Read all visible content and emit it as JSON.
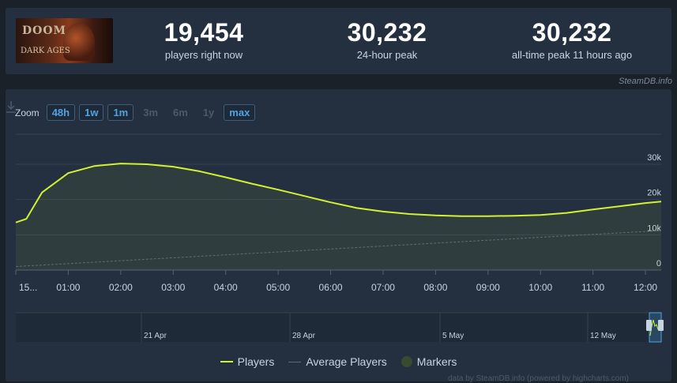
{
  "game": {
    "logo_text": "DOOM",
    "logo_sub": "DARK AGES"
  },
  "stats": [
    {
      "value": "19,454",
      "label": "players right now"
    },
    {
      "value": "30,232",
      "label": "24-hour peak"
    },
    {
      "value": "30,232",
      "label": "all-time peak 11 hours ago"
    }
  ],
  "credit": "SteamDB.info",
  "zoom": {
    "label": "Zoom",
    "options": [
      {
        "label": "48h",
        "active": true
      },
      {
        "label": "1w",
        "active": true
      },
      {
        "label": "1m",
        "active": true
      },
      {
        "label": "3m",
        "active": false
      },
      {
        "label": "6m",
        "active": false
      },
      {
        "label": "1y",
        "active": false
      },
      {
        "label": "max",
        "active": true
      }
    ]
  },
  "chart_data": {
    "type": "line",
    "x_ticks": [
      "15...",
      "01:00",
      "02:00",
      "03:00",
      "04:00",
      "05:00",
      "06:00",
      "07:00",
      "08:00",
      "09:00",
      "10:00",
      "11:00",
      "12:00"
    ],
    "y_ticks": [
      "0",
      "10k",
      "20k",
      "30k"
    ],
    "ylim": [
      0,
      30000
    ],
    "series": [
      {
        "name": "Players",
        "color": "#d1f232",
        "x": [
          0,
          0.2,
          0.5,
          1,
          1.5,
          2,
          2.5,
          3,
          3.5,
          4,
          4.5,
          5,
          5.5,
          6,
          6.5,
          7,
          7.5,
          8,
          8.5,
          9,
          9.5,
          10,
          10.5,
          11,
          11.5,
          12,
          12.3
        ],
        "values": [
          13500,
          14500,
          22000,
          27500,
          29500,
          30200,
          30000,
          29300,
          28000,
          26300,
          24500,
          22800,
          21000,
          19200,
          17600,
          16600,
          15900,
          15500,
          15300,
          15300,
          15400,
          15600,
          16200,
          17200,
          18100,
          19000,
          19400
        ]
      },
      {
        "name": "Average Players",
        "color": "#5b6b7a",
        "x": [
          0,
          12.3
        ],
        "values": [
          1000,
          11200
        ]
      }
    ],
    "navigator_labels": [
      "21 Apr",
      "28 Apr",
      "5 May",
      "12 May"
    ],
    "legend": [
      "Players",
      "Average Players",
      "Markers"
    ],
    "grid": true,
    "legend_position": "bottom"
  },
  "cutoff_text": "data by SteamDB.info (powered by highcharts.com)"
}
